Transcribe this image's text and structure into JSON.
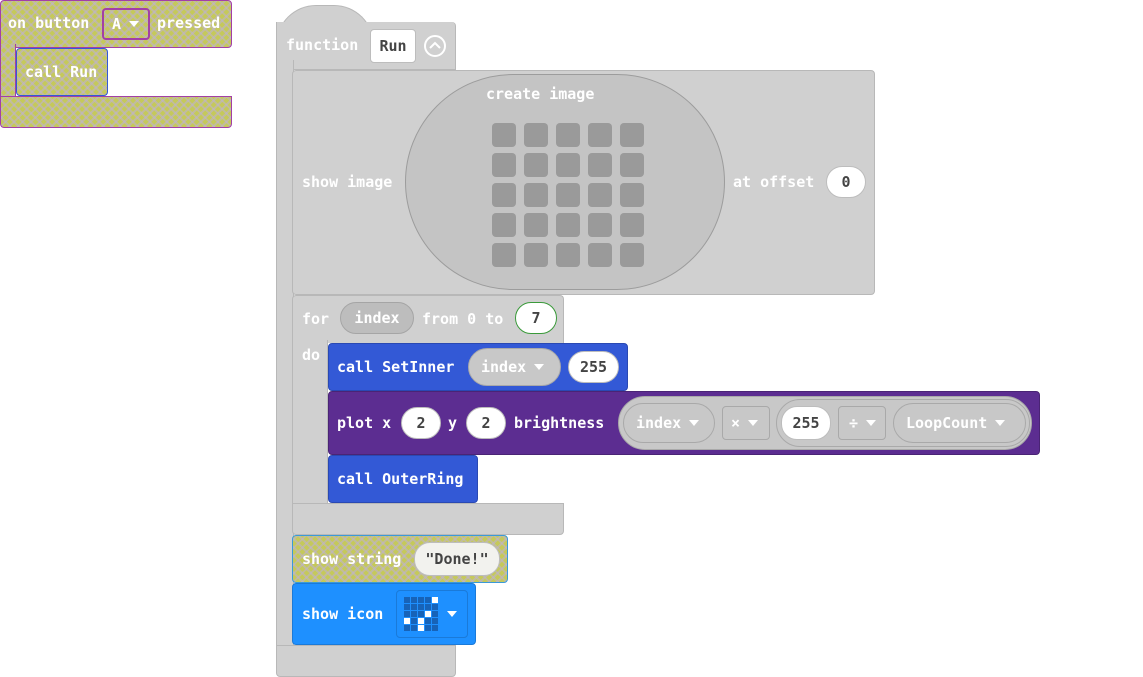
{
  "on_button_block": {
    "prefix": "on button",
    "button_value": "A",
    "suffix": "pressed",
    "call_label": "call Run"
  },
  "function_block": {
    "keyword": "function",
    "name": "Run",
    "show_image": {
      "label": "show image",
      "create_image_label": "create image",
      "at_offset_label": "at offset",
      "offset_value": "0"
    },
    "for_loop": {
      "for_label": "for",
      "var_name": "index",
      "from_label": "from 0 to",
      "to_value": "7",
      "do_label": "do",
      "call_set_inner": {
        "label": "call SetInner",
        "arg1": "index",
        "arg2": "255"
      },
      "plot": {
        "plot_x_label": "plot x",
        "x_value": "2",
        "y_label": "y",
        "y_value": "2",
        "brightness_label": "brightness",
        "var1": "index",
        "op1": "×",
        "num": "255",
        "op2": "÷",
        "var2": "LoopCount"
      },
      "call_outer_ring": {
        "label": "call OuterRing"
      }
    },
    "show_string": {
      "label": "show string",
      "value": "\"Done!\""
    },
    "show_icon": {
      "label": "show icon"
    }
  },
  "colors": {
    "hatch_yellow": "#c5c95a",
    "hatch_border": "#a33fa6",
    "grey_block": "#d0d0d0",
    "function_blue": "#3359d6",
    "led_purple": "#5c2d91",
    "basic_blue": "#1e90ff"
  },
  "icons": {
    "collapse": "collapse-chevron-up-icon",
    "dropdown": "chevron-down-icon",
    "led_icon": "led-icon-preview"
  }
}
